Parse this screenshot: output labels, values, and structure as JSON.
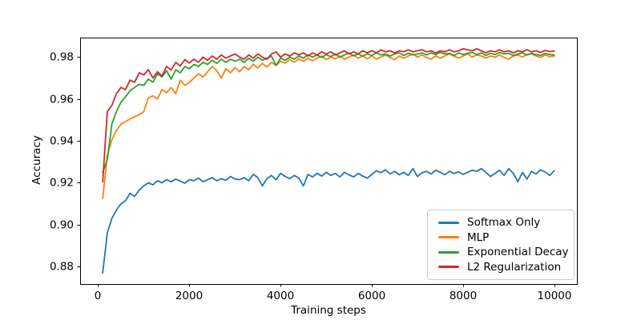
{
  "chart_data": {
    "type": "line",
    "title": "",
    "xlabel": "Training steps",
    "ylabel": "Accuracy",
    "xlim": [
      -395,
      10495
    ],
    "ylim": [
      0.8717,
      0.9893
    ],
    "grid": false,
    "legend_position": "lower right",
    "frame_color": "#000000",
    "xticks": [
      {
        "value": 0,
        "label": "0"
      },
      {
        "value": 2000,
        "label": "2000"
      },
      {
        "value": 4000,
        "label": "4000"
      },
      {
        "value": 6000,
        "label": "6000"
      },
      {
        "value": 8000,
        "label": "8000"
      },
      {
        "value": 10000,
        "label": "10000"
      }
    ],
    "yticks": [
      {
        "value": 0.88,
        "label": "0.88"
      },
      {
        "value": 0.9,
        "label": "0.90"
      },
      {
        "value": 0.92,
        "label": "0.92"
      },
      {
        "value": 0.94,
        "label": "0.94"
      },
      {
        "value": 0.96,
        "label": "0.96"
      },
      {
        "value": 0.98,
        "label": "0.98"
      }
    ],
    "x": [
      100,
      200,
      300,
      400,
      500,
      600,
      700,
      800,
      900,
      1000,
      1100,
      1200,
      1300,
      1400,
      1500,
      1600,
      1700,
      1800,
      1900,
      2000,
      2100,
      2200,
      2300,
      2400,
      2500,
      2600,
      2700,
      2800,
      2900,
      3000,
      3100,
      3200,
      3300,
      3400,
      3500,
      3600,
      3700,
      3800,
      3900,
      4000,
      4100,
      4200,
      4300,
      4400,
      4500,
      4600,
      4700,
      4800,
      4900,
      5000,
      5100,
      5200,
      5300,
      5400,
      5500,
      5600,
      5700,
      5800,
      5900,
      6000,
      6100,
      6200,
      6300,
      6400,
      6500,
      6600,
      6700,
      6800,
      6900,
      7000,
      7100,
      7200,
      7300,
      7400,
      7500,
      7600,
      7700,
      7800,
      7900,
      8000,
      8100,
      8200,
      8300,
      8400,
      8500,
      8600,
      8700,
      8800,
      8900,
      9000,
      9100,
      9200,
      9300,
      9400,
      9500,
      9600,
      9700,
      9800,
      9900,
      10000
    ],
    "series": [
      {
        "name": "Softmax Only",
        "color": "#1f77b4",
        "values": [
          0.877,
          0.896,
          0.903,
          0.907,
          0.91,
          0.9115,
          0.915,
          0.9135,
          0.9165,
          0.9185,
          0.92,
          0.919,
          0.921,
          0.92,
          0.9215,
          0.9205,
          0.9218,
          0.9208,
          0.9198,
          0.9215,
          0.921,
          0.9222,
          0.9205,
          0.9215,
          0.9225,
          0.921,
          0.922,
          0.9212,
          0.923,
          0.9218,
          0.9215,
          0.9225,
          0.921,
          0.924,
          0.9225,
          0.9185,
          0.922,
          0.9235,
          0.9215,
          0.9245,
          0.923,
          0.922,
          0.9235,
          0.9222,
          0.9185,
          0.924,
          0.9228,
          0.9245,
          0.9232,
          0.925,
          0.9235,
          0.9245,
          0.9228,
          0.925,
          0.9238,
          0.9228,
          0.9245,
          0.9232,
          0.9222,
          0.924,
          0.9258,
          0.9248,
          0.9262,
          0.9242,
          0.9255,
          0.9238,
          0.925,
          0.9235,
          0.9268,
          0.923,
          0.9248,
          0.9255,
          0.9242,
          0.926,
          0.925,
          0.9238,
          0.9255,
          0.9245,
          0.9252,
          0.924,
          0.925,
          0.926,
          0.9255,
          0.9268,
          0.925,
          0.923,
          0.9245,
          0.926,
          0.9235,
          0.9268,
          0.9245,
          0.9205,
          0.925,
          0.9218,
          0.9255,
          0.9242,
          0.9262,
          0.9252,
          0.9235,
          0.9258
        ]
      },
      {
        "name": "MLP",
        "color": "#ff7f0e",
        "values": [
          0.9125,
          0.933,
          0.9405,
          0.945,
          0.948,
          0.9492,
          0.9505,
          0.9515,
          0.9525,
          0.954,
          0.9605,
          0.9615,
          0.96,
          0.9645,
          0.963,
          0.9655,
          0.9625,
          0.969,
          0.9665,
          0.968,
          0.97,
          0.972,
          0.9705,
          0.973,
          0.9755,
          0.9735,
          0.97,
          0.9745,
          0.9725,
          0.975,
          0.973,
          0.9755,
          0.974,
          0.9765,
          0.9748,
          0.977,
          0.9752,
          0.9775,
          0.976,
          0.978,
          0.9772,
          0.9788,
          0.9775,
          0.9792,
          0.978,
          0.9795,
          0.9782,
          0.9795,
          0.9805,
          0.9788,
          0.98,
          0.9792,
          0.9805,
          0.979,
          0.98,
          0.981,
          0.9795,
          0.9805,
          0.9792,
          0.9805,
          0.979,
          0.98,
          0.981,
          0.9798,
          0.9788,
          0.9805,
          0.9795,
          0.9805,
          0.9815,
          0.98,
          0.981,
          0.9798,
          0.979,
          0.9805,
          0.9795,
          0.9806,
          0.9815,
          0.9805,
          0.9795,
          0.9805,
          0.9815,
          0.98,
          0.981,
          0.9805,
          0.9795,
          0.9805,
          0.98,
          0.981,
          0.9798,
          0.979,
          0.9805,
          0.981,
          0.98,
          0.9812,
          0.9815,
          0.9805,
          0.9798,
          0.981,
          0.9802,
          0.9805
        ]
      },
      {
        "name": "Exponential Decay",
        "color": "#2ca02c",
        "values": [
          0.925,
          0.931,
          0.948,
          0.954,
          0.9585,
          0.961,
          0.964,
          0.9655,
          0.967,
          0.9665,
          0.9695,
          0.968,
          0.972,
          0.9705,
          0.9735,
          0.9695,
          0.974,
          0.9725,
          0.9755,
          0.9745,
          0.9765,
          0.9755,
          0.9775,
          0.9765,
          0.9785,
          0.977,
          0.979,
          0.9775,
          0.979,
          0.978,
          0.979,
          0.9775,
          0.9795,
          0.978,
          0.98,
          0.9785,
          0.9795,
          0.9805,
          0.976,
          0.9795,
          0.9785,
          0.98,
          0.979,
          0.9805,
          0.9795,
          0.981,
          0.98,
          0.981,
          0.9798,
          0.9812,
          0.9802,
          0.9815,
          0.98,
          0.981,
          0.982,
          0.9805,
          0.9815,
          0.9805,
          0.9815,
          0.9808,
          0.982,
          0.981,
          0.9815,
          0.9805,
          0.9815,
          0.982,
          0.9808,
          0.9818,
          0.981,
          0.9815,
          0.982,
          0.981,
          0.982,
          0.9812,
          0.9822,
          0.9815,
          0.9818,
          0.9808,
          0.982,
          0.9812,
          0.9818,
          0.9822,
          0.9812,
          0.982,
          0.9808,
          0.9818,
          0.9812,
          0.9822,
          0.9815,
          0.9818,
          0.9808,
          0.9815,
          0.982,
          0.981,
          0.9818,
          0.9812,
          0.9808,
          0.9818,
          0.9812,
          0.981
        ]
      },
      {
        "name": "L2 Regularization",
        "color": "#d62728",
        "values": [
          0.9205,
          0.954,
          0.957,
          0.9625,
          0.9655,
          0.9645,
          0.969,
          0.968,
          0.9725,
          0.9715,
          0.974,
          0.97,
          0.973,
          0.971,
          0.9755,
          0.9738,
          0.9775,
          0.9758,
          0.9788,
          0.9772,
          0.979,
          0.9775,
          0.98,
          0.9785,
          0.9805,
          0.979,
          0.981,
          0.9795,
          0.9805,
          0.9815,
          0.98,
          0.979,
          0.981,
          0.9795,
          0.9815,
          0.98,
          0.979,
          0.9815,
          0.9825,
          0.98,
          0.9815,
          0.9805,
          0.982,
          0.981,
          0.982,
          0.9805,
          0.982,
          0.981,
          0.9825,
          0.9815,
          0.9825,
          0.981,
          0.982,
          0.983,
          0.9815,
          0.9825,
          0.9815,
          0.983,
          0.982,
          0.983,
          0.982,
          0.9835,
          0.9825,
          0.983,
          0.982,
          0.983,
          0.9825,
          0.9835,
          0.9825,
          0.983,
          0.9835,
          0.9825,
          0.983,
          0.982,
          0.983,
          0.9825,
          0.9835,
          0.9825,
          0.983,
          0.984,
          0.9835,
          0.983,
          0.984,
          0.983,
          0.982,
          0.983,
          0.9825,
          0.9835,
          0.9825,
          0.983,
          0.982,
          0.983,
          0.9825,
          0.9835,
          0.9825,
          0.983,
          0.9822,
          0.9832,
          0.9826,
          0.9828
        ]
      }
    ]
  }
}
